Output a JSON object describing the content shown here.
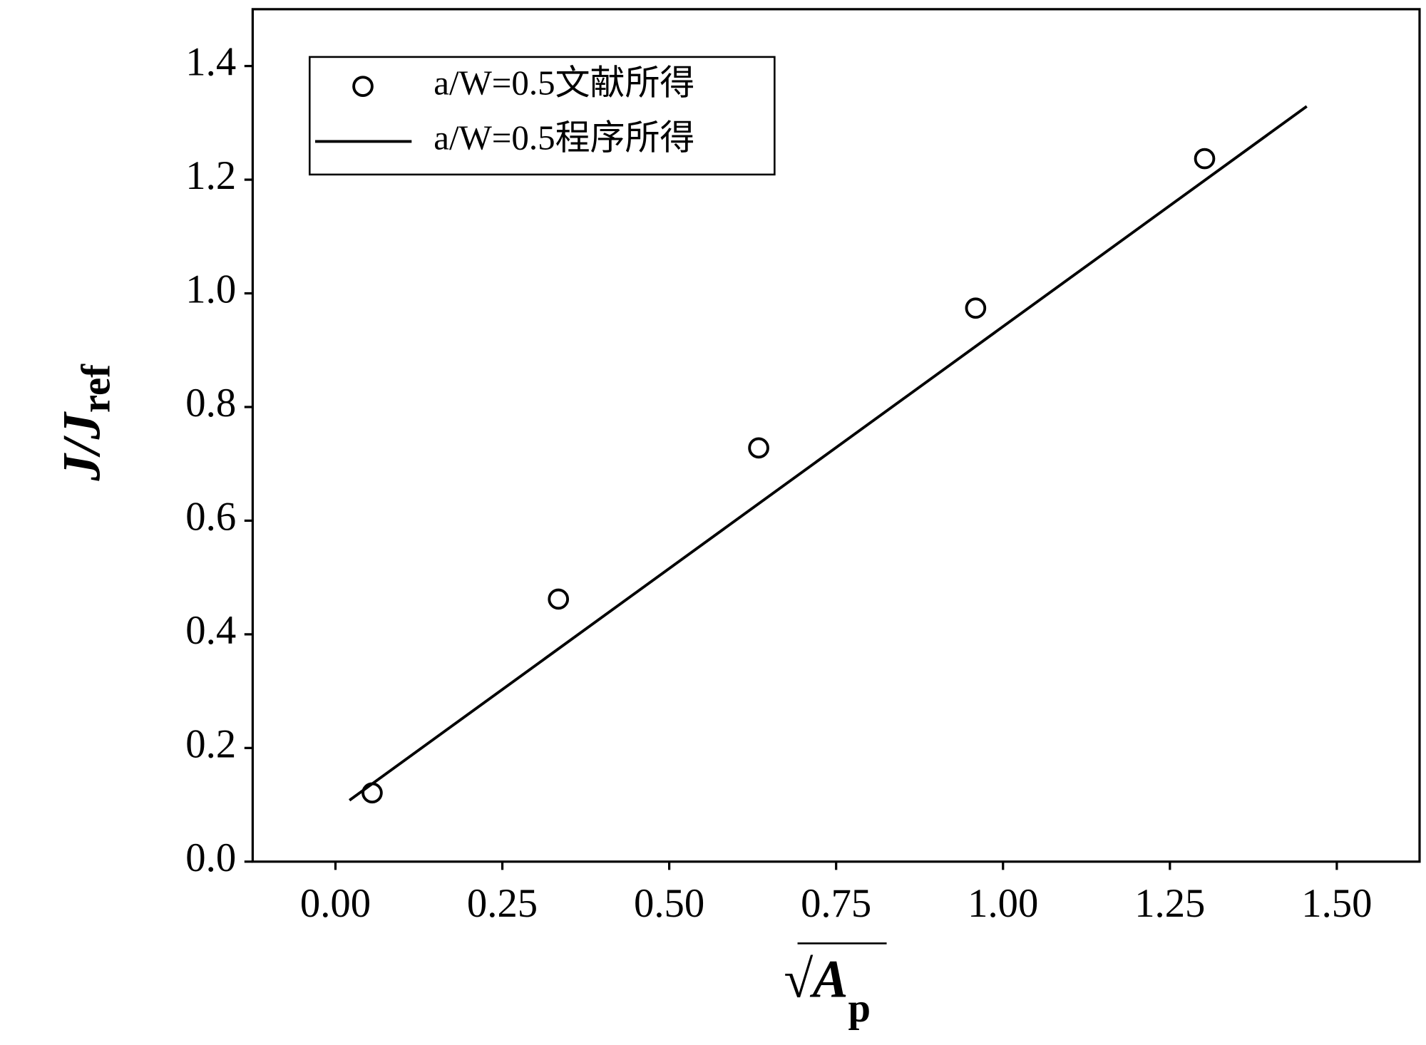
{
  "chart_data": {
    "type": "scatter",
    "xlabel": {
      "main": "√A",
      "sub": "p"
    },
    "ylabel": {
      "main": "J/J",
      "sub": "ref"
    },
    "xlim": [
      -0.124,
      1.624
    ],
    "ylim": [
      0,
      1.5
    ],
    "xticks": [
      {
        "value": 0,
        "label": "0.00"
      },
      0.25,
      {
        "value": 0.5,
        "label": "0.50"
      },
      0.75,
      {
        "value": 1,
        "label": "1.00"
      },
      1.25,
      {
        "value": 1.5,
        "label": "1.50"
      }
    ],
    "yticks": [
      {
        "value": 0,
        "label": "0.0"
      },
      0.2,
      0.4,
      0.6,
      0.8,
      {
        "value": 1,
        "label": "1.0"
      },
      1.2,
      1.4
    ],
    "legend": "upper left",
    "series": [
      {
        "name": "a/W=0.5文献所得",
        "mode": "markers",
        "color": "#000000",
        "x": [
          0.055,
          0.334,
          0.634,
          0.959,
          1.302
        ],
        "values": [
          0.121,
          0.462,
          0.728,
          0.974,
          1.237
        ]
      },
      {
        "name": "a/W=0.5程序所得",
        "mode": "line",
        "color": "#000000",
        "x": [
          0.021,
          1.455
        ],
        "values": [
          0.108,
          1.329
        ]
      }
    ]
  }
}
